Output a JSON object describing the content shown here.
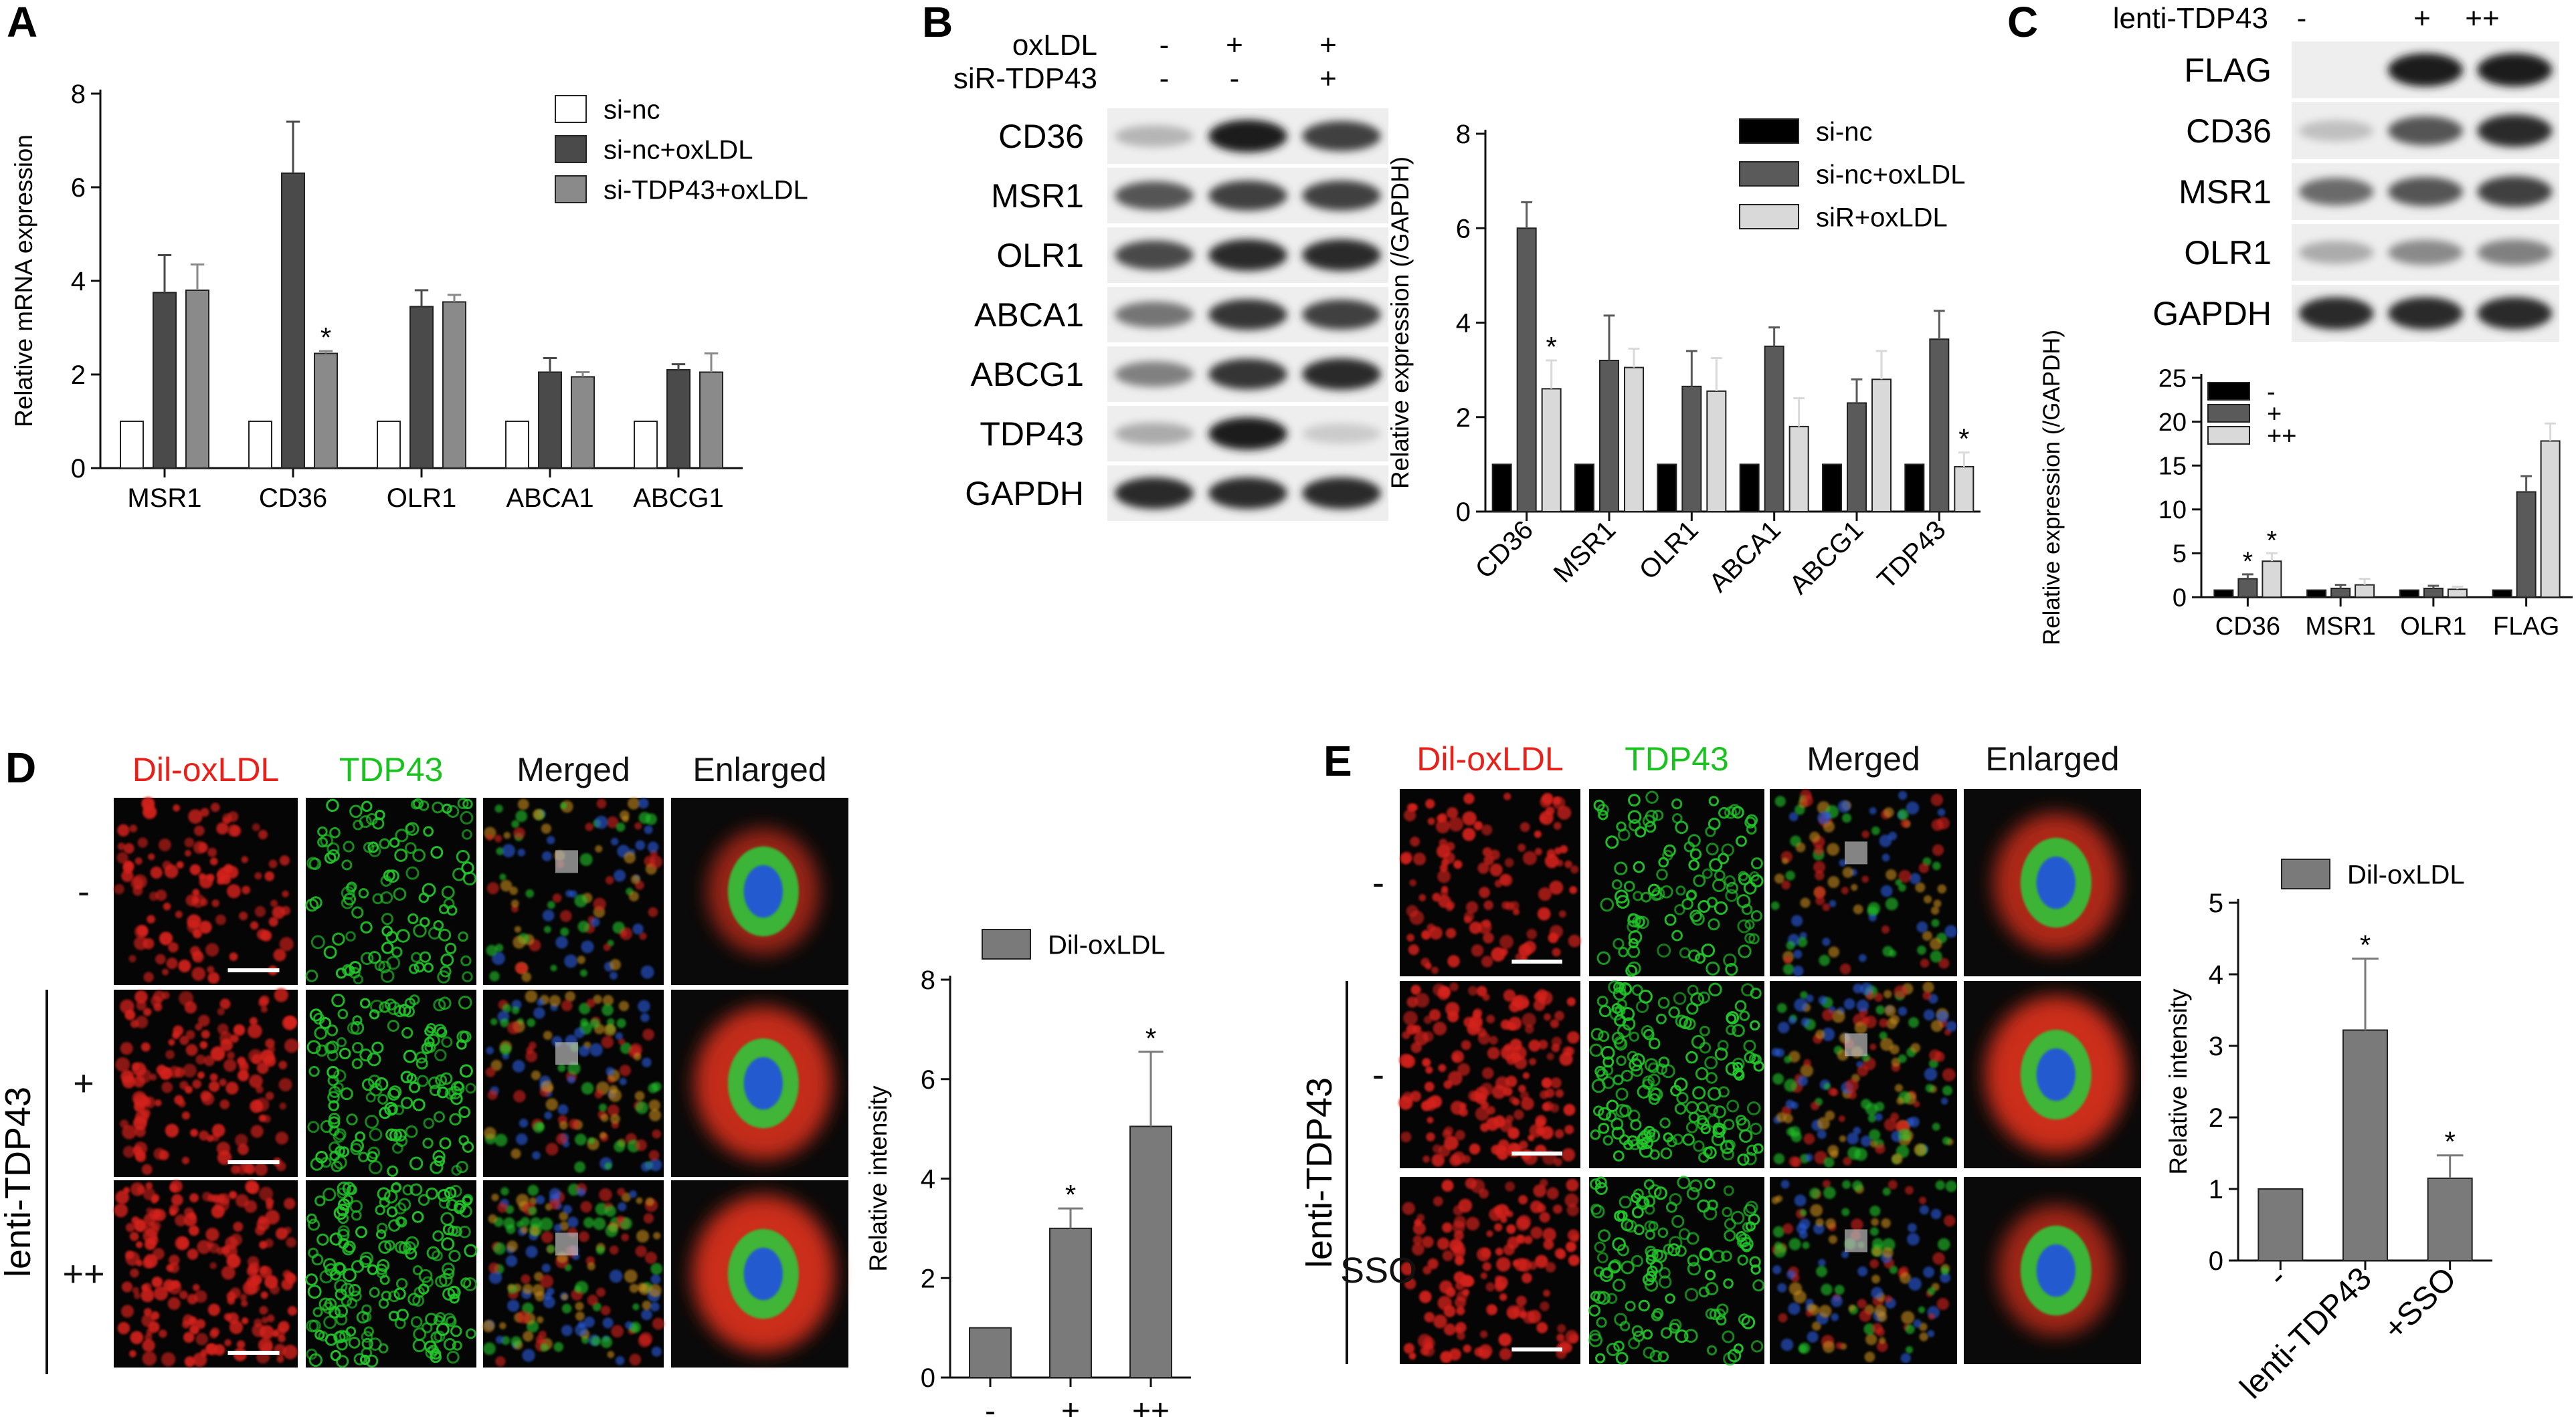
{
  "panel_letters": {
    "a": "A",
    "b": "B",
    "c": "C",
    "d": "D",
    "e": "E"
  },
  "colors": {
    "black": "#000000",
    "dark_gray": "#4a4a4a",
    "mid_gray": "#7a7a7a",
    "light_gray": "#d9d9d9",
    "white": "#ffffff",
    "red_channel": "#e8201a",
    "green_channel": "#19c21e"
  },
  "chart_data": [
    {
      "id": "A",
      "type": "bar",
      "categories": [
        "MSR1",
        "CD36",
        "OLR1",
        "ABCA1",
        "ABCG1"
      ],
      "series": [
        {
          "name": "si-nc",
          "values": [
            1,
            1,
            1,
            1,
            1
          ],
          "errors": [
            0,
            0,
            0,
            0,
            0
          ],
          "color": "#ffffff"
        },
        {
          "name": "si-nc+oxLDL",
          "values": [
            3.75,
            6.3,
            3.45,
            2.05,
            2.1
          ],
          "errors": [
            0.8,
            1.1,
            0.35,
            0.3,
            0.12
          ],
          "color": "#4a4a4a"
        },
        {
          "name": "si-TDP43+oxLDL",
          "values": [
            3.8,
            2.45,
            3.55,
            1.95,
            2.05
          ],
          "errors": [
            0.55,
            0.05,
            0.15,
            0.1,
            0.4
          ],
          "color": "#8a8a8a"
        }
      ],
      "stars": [
        {
          "category": 1,
          "series": 2,
          "text": "*"
        }
      ],
      "ylabel": "Relative mRNA  expression",
      "ylim": [
        0,
        8
      ],
      "yticks": [
        "0",
        "2",
        "4",
        "6",
        "8"
      ],
      "legend": "top-right"
    },
    {
      "id": "B",
      "type": "bar",
      "categories": [
        "CD36",
        "MSR1",
        "OLR1",
        "ABCA1",
        "ABCG1",
        "TDP43"
      ],
      "series": [
        {
          "name": "si-nc",
          "values": [
            1,
            1,
            1,
            1,
            1,
            1
          ],
          "errors": [
            0,
            0,
            0,
            0,
            0,
            0
          ],
          "color": "#000000"
        },
        {
          "name": "si-nc+oxLDL",
          "values": [
            6.0,
            3.2,
            2.65,
            3.5,
            2.3,
            3.65
          ],
          "errors": [
            0.55,
            0.95,
            0.75,
            0.4,
            0.5,
            0.6
          ],
          "color": "#5a5a5a"
        },
        {
          "name": "siR+oxLDL",
          "values": [
            2.6,
            3.05,
            2.55,
            1.8,
            2.8,
            0.95
          ],
          "errors": [
            0.6,
            0.4,
            0.7,
            0.6,
            0.6,
            0.3
          ],
          "color": "#d9d9d9"
        }
      ],
      "stars": [
        {
          "category": 0,
          "series": 2,
          "text": "*"
        },
        {
          "category": 5,
          "series": 2,
          "text": "*"
        }
      ],
      "ylabel": "Relative expression (/GAPDH)",
      "ylim": [
        0,
        8
      ],
      "yticks": [
        "0",
        "2",
        "4",
        "6",
        "8"
      ],
      "legend": "top-right"
    },
    {
      "id": "C",
      "type": "bar",
      "categories": [
        "CD36",
        "MSR1",
        "OLR1",
        "FLAG"
      ],
      "series": [
        {
          "name": "-",
          "values": [
            0.8,
            0.8,
            0.8,
            0.8
          ],
          "errors": [
            0,
            0,
            0,
            0
          ],
          "color": "#000000"
        },
        {
          "name": "+",
          "values": [
            2.1,
            1.0,
            1.0,
            12.0
          ],
          "errors": [
            0.5,
            0.4,
            0.3,
            1.8
          ],
          "color": "#5a5a5a"
        },
        {
          "name": "++",
          "values": [
            4.1,
            1.4,
            0.9,
            17.8
          ],
          "errors": [
            0.9,
            0.7,
            0.3,
            2.0
          ],
          "color": "#d9d9d9"
        }
      ],
      "stars": [
        {
          "category": 0,
          "series": 1,
          "text": "*"
        },
        {
          "category": 0,
          "series": 2,
          "text": "*"
        }
      ],
      "ylabel": "Relative expression (/GAPDH)",
      "ylim": [
        0,
        25
      ],
      "yticks": [
        "0",
        "5",
        "10",
        "15",
        "20",
        "25"
      ],
      "legend": "top-left"
    },
    {
      "id": "D",
      "type": "bar",
      "categories": [
        "-",
        "+",
        "++"
      ],
      "series": [
        {
          "name": "Dil-oxLDL",
          "values": [
            1,
            3.0,
            5.05
          ],
          "errors": [
            0,
            0.4,
            1.5
          ],
          "color": "#7a7a7a"
        }
      ],
      "stars": [
        {
          "category": 1,
          "series": 0,
          "text": "*"
        },
        {
          "category": 2,
          "series": 0,
          "text": "*"
        }
      ],
      "ylabel": "Relative intensity",
      "ylim": [
        0,
        8
      ],
      "yticks": [
        "0",
        "2",
        "4",
        "6",
        "8"
      ],
      "legend": "top"
    },
    {
      "id": "E",
      "type": "bar",
      "categories": [
        "-",
        "lenti-TDP43",
        "+SSO"
      ],
      "series": [
        {
          "name": "Dil-oxLDL",
          "values": [
            1,
            3.22,
            1.15
          ],
          "errors": [
            0,
            1.0,
            0.32
          ],
          "color": "#7a7a7a"
        }
      ],
      "stars": [
        {
          "category": 1,
          "series": 0,
          "text": "*"
        },
        {
          "category": 2,
          "series": 0,
          "text": "*"
        }
      ],
      "ylabel": "Relative intensity",
      "ylim": [
        0,
        5
      ],
      "yticks": [
        "0",
        "1",
        "2",
        "3",
        "4",
        "5"
      ],
      "legend": "top"
    }
  ],
  "blot_b": {
    "conditions": [
      {
        "label": "oxLDL",
        "marks": [
          "-",
          "+",
          "+"
        ]
      },
      {
        "label": "siR-TDP43",
        "marks": [
          "-",
          "-",
          "+"
        ]
      }
    ],
    "bands": [
      "CD36",
      "MSR1",
      "OLR1",
      "ABCA1",
      "ABCG1",
      "TDP43",
      "GAPDH"
    ],
    "intensity": [
      [
        0.25,
        0.95,
        0.8
      ],
      [
        0.7,
        0.8,
        0.8
      ],
      [
        0.75,
        0.9,
        0.9
      ],
      [
        0.55,
        0.85,
        0.8
      ],
      [
        0.5,
        0.85,
        0.9
      ],
      [
        0.3,
        0.95,
        0.15
      ],
      [
        0.9,
        0.9,
        0.9
      ]
    ]
  },
  "blot_c": {
    "condition": {
      "label": "lenti-TDP43",
      "marks": [
        "-",
        "+",
        "++"
      ]
    },
    "bands": [
      "FLAG",
      "CD36",
      "MSR1",
      "OLR1",
      "GAPDH"
    ],
    "intensity": [
      [
        0.0,
        0.95,
        0.95
      ],
      [
        0.2,
        0.7,
        0.9
      ],
      [
        0.6,
        0.7,
        0.8
      ],
      [
        0.3,
        0.45,
        0.5
      ],
      [
        0.9,
        0.9,
        0.9
      ]
    ]
  },
  "micro_d": {
    "headers": [
      "Dil-oxLDL",
      "TDP43",
      "Merged",
      "Enlarged"
    ],
    "row_labels": [
      "-",
      "+",
      "++"
    ],
    "group_label": "lenti-TDP43"
  },
  "micro_e": {
    "headers": [
      "Dil-oxLDL",
      "TDP43",
      "Merged",
      "Enlarged"
    ],
    "row_labels": [
      "-",
      "-",
      "SSO"
    ],
    "group_label": "lenti-TDP43"
  }
}
